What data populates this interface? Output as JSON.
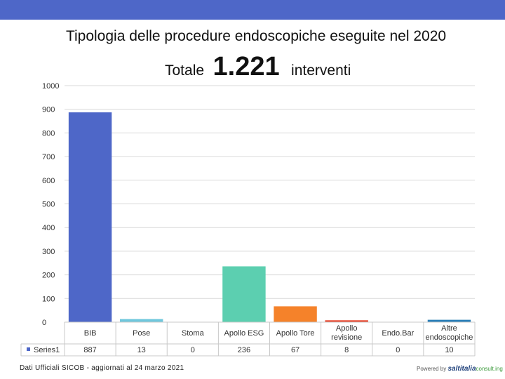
{
  "header": {
    "bar_color": "#4e67c8"
  },
  "title": "Tipologia delle procedure endoscopiche eseguite nel 2020",
  "totale": {
    "label": "Totale",
    "value": "1.221",
    "suffix": "interventi"
  },
  "chart_data": {
    "type": "bar",
    "categories": [
      "BIB",
      "Pose",
      "Stoma",
      "Apollo ESG",
      "Apollo Tore",
      "Apollo revisione",
      "Endo.Bar",
      "Altre endoscopiche"
    ],
    "series": [
      {
        "name": "Series1",
        "values": [
          887,
          13,
          0,
          236,
          67,
          8,
          0,
          10
        ]
      }
    ],
    "bar_colors": [
      "#4e67c8",
      "#6fc7dd",
      "#9ad4a8",
      "#5ccfb0",
      "#f5822a",
      "#e8472f",
      "#6a7fd0",
      "#2a7fb8"
    ],
    "ylim": [
      0,
      1000
    ],
    "yticks": [
      0,
      100,
      200,
      300,
      400,
      500,
      600,
      700,
      800,
      900,
      1000
    ],
    "data_table": true,
    "legend_key_color": "#4e67c8",
    "grid": true
  },
  "footer": "Dati Ufficiali SICOB - aggiornati al 24 marzo 2021",
  "logo": {
    "prefix": "Powered by",
    "brand": "saltitalia",
    "suffix": "consult.ing"
  }
}
